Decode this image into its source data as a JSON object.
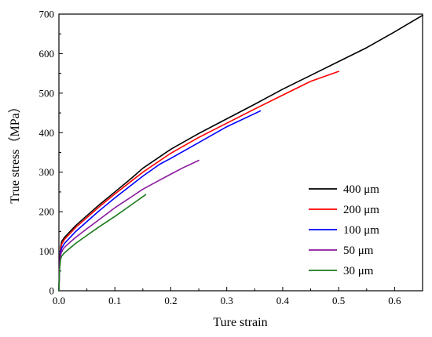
{
  "chart_data": {
    "type": "line",
    "title": "",
    "xlabel": "Ture strain",
    "ylabel": "True stress（MPa）",
    "xlim": [
      0,
      0.65
    ],
    "ylim": [
      0,
      700
    ],
    "x_ticks": [
      0.0,
      0.1,
      0.2,
      0.3,
      0.4,
      0.5,
      0.6
    ],
    "x_tick_labels": [
      "0.0",
      "0.1",
      "0.2",
      "0.3",
      "0.4",
      "0.5",
      "0.6"
    ],
    "y_ticks": [
      0,
      100,
      200,
      300,
      400,
      500,
      600,
      700
    ],
    "y_tick_labels": [
      "0",
      "100",
      "200",
      "300",
      "400",
      "500",
      "600",
      "700"
    ],
    "grid": false,
    "legend_position": "bottom-right",
    "series": [
      {
        "name": "400 μm",
        "color": "#000000",
        "x": [
          0.0,
          0.001,
          0.003,
          0.005,
          0.01,
          0.02,
          0.03,
          0.05,
          0.07,
          0.1,
          0.13,
          0.15,
          0.2,
          0.25,
          0.3,
          0.35,
          0.4,
          0.45,
          0.5,
          0.55,
          0.6,
          0.65
        ],
        "y": [
          0,
          70,
          110,
          125,
          135,
          150,
          165,
          190,
          215,
          250,
          285,
          310,
          358,
          398,
          435,
          472,
          510,
          545,
          580,
          615,
          655,
          697
        ]
      },
      {
        "name": "200 μm",
        "color": "#ff0000",
        "x": [
          0.0,
          0.001,
          0.003,
          0.005,
          0.01,
          0.02,
          0.03,
          0.05,
          0.07,
          0.1,
          0.13,
          0.15,
          0.2,
          0.25,
          0.3,
          0.35,
          0.4,
          0.45,
          0.5
        ],
        "y": [
          0,
          65,
          105,
          118,
          130,
          145,
          160,
          185,
          210,
          245,
          278,
          300,
          348,
          388,
          424,
          460,
          495,
          530,
          555
        ]
      },
      {
        "name": "100 μm",
        "color": "#0000ff",
        "x": [
          0.0,
          0.001,
          0.003,
          0.005,
          0.01,
          0.02,
          0.03,
          0.05,
          0.07,
          0.1,
          0.13,
          0.15,
          0.18,
          0.2,
          0.25,
          0.3,
          0.36
        ],
        "y": [
          0,
          60,
          98,
          108,
          120,
          135,
          150,
          175,
          200,
          235,
          268,
          290,
          320,
          335,
          375,
          415,
          455
        ]
      },
      {
        "name": "50 μm",
        "color": "#8b1a9e",
        "x": [
          0.0,
          0.001,
          0.003,
          0.005,
          0.01,
          0.02,
          0.03,
          0.05,
          0.07,
          0.1,
          0.13,
          0.15,
          0.18,
          0.2,
          0.22,
          0.25
        ],
        "y": [
          0,
          55,
          90,
          100,
          110,
          123,
          135,
          157,
          178,
          210,
          238,
          257,
          280,
          295,
          310,
          330
        ]
      },
      {
        "name": "30 μm",
        "color": "#1a7a1a",
        "x": [
          0.0,
          0.001,
          0.003,
          0.005,
          0.01,
          0.02,
          0.03,
          0.05,
          0.07,
          0.1,
          0.12,
          0.14,
          0.155
        ],
        "y": [
          0,
          50,
          80,
          88,
          96,
          108,
          120,
          140,
          160,
          188,
          208,
          228,
          243
        ]
      }
    ]
  }
}
